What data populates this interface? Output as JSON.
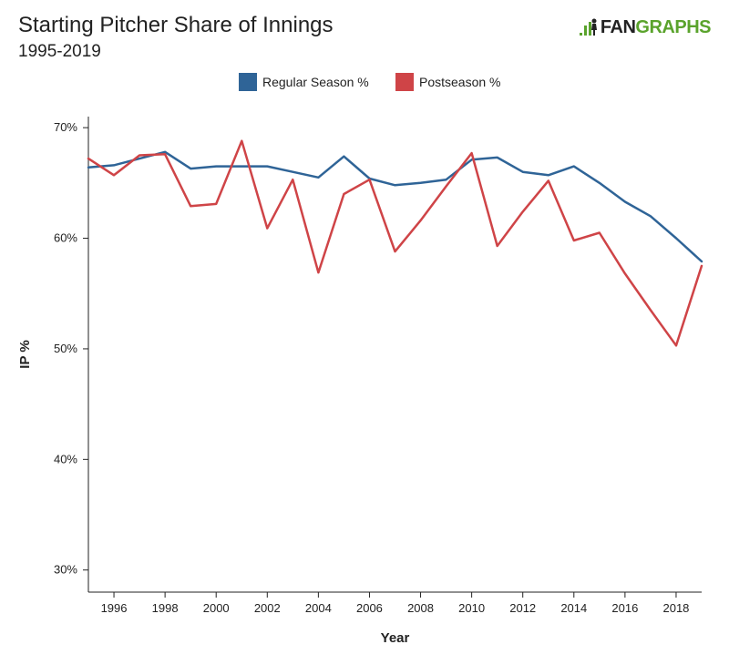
{
  "header": {
    "title": "Starting Pitcher Share of Innings",
    "subtitle": "1995-2019",
    "logo_left": "FAN",
    "logo_right": "GRAPHS",
    "logo_icon": "fangraphs-logo-icon"
  },
  "chart_data": {
    "type": "line",
    "xlabel": "Year",
    "ylabel": "IP %",
    "xlim": [
      1995,
      2019
    ],
    "ylim": [
      28,
      71
    ],
    "x_ticks": [
      1996,
      1998,
      2000,
      2002,
      2004,
      2006,
      2008,
      2010,
      2012,
      2014,
      2016,
      2018
    ],
    "y_ticks": [
      30,
      40,
      50,
      60,
      70
    ],
    "y_tick_labels": [
      "30%",
      "40%",
      "50%",
      "60%",
      "70%"
    ],
    "grid": false,
    "legend_position": "top-center",
    "x": [
      1995,
      1996,
      1997,
      1998,
      1999,
      2000,
      2001,
      2002,
      2003,
      2004,
      2005,
      2006,
      2007,
      2008,
      2009,
      2010,
      2011,
      2012,
      2013,
      2014,
      2015,
      2016,
      2017,
      2018,
      2019
    ],
    "series": [
      {
        "name": "Regular Season %",
        "color": "#2f6497",
        "values": [
          66.4,
          66.6,
          67.2,
          67.8,
          66.3,
          66.5,
          66.5,
          66.5,
          66.0,
          65.5,
          67.4,
          65.4,
          64.8,
          65.0,
          65.3,
          67.1,
          67.3,
          66.0,
          65.7,
          66.5,
          65.0,
          63.3,
          62.0,
          60.0,
          57.9
        ]
      },
      {
        "name": "Postseason %",
        "color": "#cf4447",
        "values": [
          67.2,
          65.7,
          67.5,
          67.6,
          62.9,
          63.1,
          68.8,
          60.9,
          65.3,
          56.9,
          64.0,
          65.3,
          58.8,
          61.6,
          64.7,
          67.7,
          59.3,
          62.4,
          65.2,
          59.8,
          60.5,
          56.8,
          53.5,
          50.3,
          57.5
        ]
      }
    ]
  }
}
